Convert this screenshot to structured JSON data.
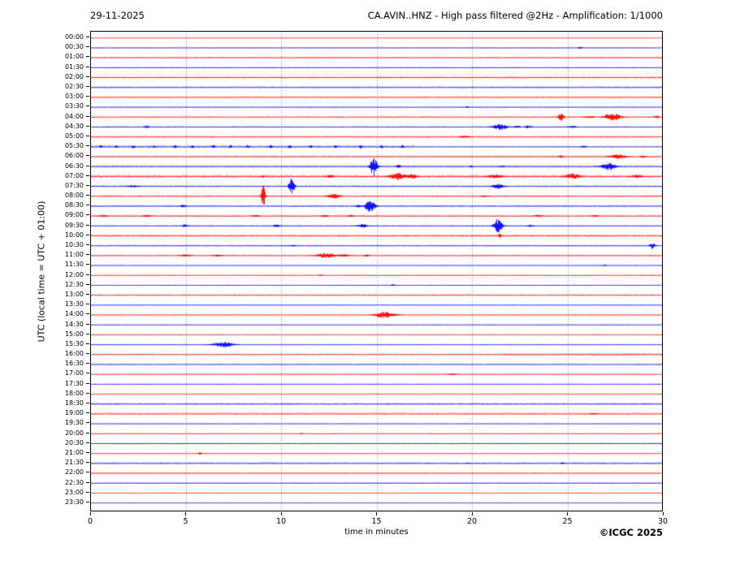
{
  "header": {
    "date": "29-11-2025",
    "title": "CA.AVIN..HNZ - High pass filtered @2Hz - Amplification: 1/1000"
  },
  "axes": {
    "ylabel": "UTC (local time = UTC + 01:00)",
    "xlabel": "time in minutes",
    "xticks": [
      0,
      5,
      10,
      15,
      20,
      25,
      30
    ],
    "xmin": 0,
    "xmax": 30,
    "grid_minutes": [
      5,
      10,
      15,
      20,
      25
    ]
  },
  "footer": {
    "copyright": "©ICGC 2025"
  },
  "colors": {
    "red": "#ff0000",
    "blue": "#0000ff",
    "grid": "#8a8a8a",
    "frame": "#000000"
  },
  "chart_data": {
    "type": "line",
    "subtype": "helicorder-dayplot",
    "station": "CA.AVIN..HNZ",
    "date": "29-11-2025",
    "minutes_per_row": 30,
    "event_format": "[center_minute, amplitude_px, width_minutes]",
    "noise_segment_format": "[start_minute, end_minute, noise_px]",
    "rows": [
      {
        "label": "00:00",
        "color": "red",
        "noise": 0.3,
        "events": []
      },
      {
        "label": "00:30",
        "color": "blue",
        "noise": 0.5,
        "events": [
          [
            25.6,
            1.5,
            0.1
          ]
        ]
      },
      {
        "label": "01:00",
        "color": "red",
        "noise": 0.7,
        "events": []
      },
      {
        "label": "01:30",
        "color": "blue",
        "noise": 0.55,
        "events": []
      },
      {
        "label": "02:00",
        "color": "red",
        "noise": 0.9,
        "events": []
      },
      {
        "label": "02:30",
        "color": "blue",
        "noise": 0.8,
        "events": []
      },
      {
        "label": "03:00",
        "color": "red",
        "noise": 0.8,
        "events": []
      },
      {
        "label": "03:30",
        "color": "blue",
        "noise": 0.6,
        "events": [
          [
            19.7,
            1.0,
            0.1
          ]
        ]
      },
      {
        "label": "04:00",
        "color": "red",
        "noise": 0.7,
        "events": [
          [
            24.6,
            5,
            0.15
          ],
          [
            26.1,
            1.5,
            0.3
          ],
          [
            27.3,
            5,
            0.45
          ],
          [
            29.6,
            2,
            0.12
          ]
        ]
      },
      {
        "label": "04:30",
        "color": "blue",
        "noise": 0.7,
        "events": [
          [
            2.9,
            2,
            0.15
          ],
          [
            21.4,
            4,
            0.4
          ],
          [
            22.3,
            1.5,
            0.2
          ],
          [
            22.9,
            2,
            0.2
          ],
          [
            25.2,
            1.5,
            0.25
          ]
        ]
      },
      {
        "label": "05:00",
        "color": "red",
        "noise": 0.9,
        "events": [
          [
            19.6,
            1.5,
            0.3
          ]
        ]
      },
      {
        "label": "05:30",
        "color": "blue",
        "noise": 1.0,
        "nseg": [
          [
            0,
            17,
            1.1
          ],
          [
            17,
            30,
            0.6
          ]
        ],
        "events": [
          [
            0.5,
            2.5,
            0.08
          ],
          [
            1.3,
            2,
            0.08
          ],
          [
            2.2,
            2.5,
            0.08
          ],
          [
            3.3,
            2,
            0.08
          ],
          [
            4.4,
            2.5,
            0.08
          ],
          [
            5.3,
            2,
            0.08
          ],
          [
            6.4,
            2.5,
            0.08
          ],
          [
            7.3,
            2,
            0.08
          ],
          [
            8.2,
            2.5,
            0.08
          ],
          [
            9.4,
            2.2,
            0.08
          ],
          [
            10.4,
            2.5,
            0.08
          ],
          [
            11.5,
            2,
            0.08
          ],
          [
            12.8,
            2.2,
            0.08
          ],
          [
            14.1,
            2.5,
            0.08
          ],
          [
            15.2,
            2.2,
            0.08
          ],
          [
            16.3,
            2.5,
            0.08
          ],
          [
            25.8,
            1.2,
            0.15
          ]
        ]
      },
      {
        "label": "06:00",
        "color": "red",
        "noise": 0.9,
        "events": [
          [
            24.6,
            2,
            0.12
          ],
          [
            27.6,
            3,
            0.45
          ],
          [
            28.9,
            1.5,
            0.15
          ]
        ]
      },
      {
        "label": "06:30",
        "color": "blue",
        "noise": 0.9,
        "events": [
          [
            14.8,
            13,
            0.18
          ],
          [
            16.1,
            2.5,
            0.12
          ],
          [
            19.9,
            1.5,
            0.1
          ],
          [
            21.5,
            1.5,
            0.15
          ],
          [
            27.1,
            4.5,
            0.4
          ]
        ]
      },
      {
        "label": "07:00",
        "color": "red",
        "noise": 1.4,
        "events": [
          [
            9.0,
            2,
            0.1
          ],
          [
            12.5,
            2,
            0.2
          ],
          [
            16.1,
            4.5,
            0.5
          ],
          [
            16.8,
            3,
            0.3
          ],
          [
            21.2,
            2.5,
            0.4
          ],
          [
            25.2,
            3.5,
            0.4
          ],
          [
            28.6,
            2,
            0.3
          ]
        ]
      },
      {
        "label": "07:30",
        "color": "blue",
        "noise": 0.8,
        "events": [
          [
            2.2,
            1.5,
            0.3
          ],
          [
            10.5,
            11,
            0.15
          ],
          [
            21.3,
            3.5,
            0.3
          ]
        ]
      },
      {
        "label": "08:00",
        "color": "red",
        "noise": 0.9,
        "events": [
          [
            9.0,
            16,
            0.1
          ],
          [
            12.7,
            3,
            0.35
          ],
          [
            20.6,
            1.5,
            0.2
          ]
        ]
      },
      {
        "label": "08:30",
        "color": "blue",
        "noise": 0.8,
        "events": [
          [
            4.8,
            1.8,
            0.15
          ],
          [
            14.0,
            2,
            0.15
          ],
          [
            14.6,
            9,
            0.25
          ]
        ]
      },
      {
        "label": "09:00",
        "color": "red",
        "noise": 0.9,
        "events": [
          [
            0.6,
            1.5,
            0.2
          ],
          [
            2.9,
            1.5,
            0.2
          ],
          [
            8.6,
            1.5,
            0.2
          ],
          [
            12.2,
            1.5,
            0.2
          ],
          [
            13.6,
            1.3,
            0.15
          ],
          [
            23.4,
            1.5,
            0.2
          ],
          [
            26.4,
            1.3,
            0.2
          ]
        ]
      },
      {
        "label": "09:30",
        "color": "blue",
        "noise": 0.7,
        "events": [
          [
            4.9,
            2,
            0.15
          ],
          [
            9.7,
            2.2,
            0.15
          ],
          [
            14.2,
            2.5,
            0.25
          ],
          [
            21.3,
            9,
            0.22
          ],
          [
            23.0,
            1.5,
            0.15
          ]
        ]
      },
      {
        "label": "10:00",
        "color": "red",
        "noise": 1.0,
        "events": [
          [
            21.4,
            3,
            0.08
          ]
        ]
      },
      {
        "label": "10:30",
        "color": "blue",
        "noise": 0.7,
        "events": [
          [
            10.6,
            1.5,
            0.12
          ],
          [
            29.4,
            4,
            0.15
          ]
        ]
      },
      {
        "label": "11:00",
        "color": "red",
        "noise": 0.8,
        "events": [
          [
            4.9,
            1.5,
            0.3
          ],
          [
            6.6,
            1.5,
            0.25
          ],
          [
            12.3,
            3.5,
            0.5
          ],
          [
            13.2,
            2,
            0.3
          ],
          [
            14.4,
            1.5,
            0.15
          ]
        ]
      },
      {
        "label": "11:30",
        "color": "blue",
        "noise": 0.5,
        "events": [
          [
            26.9,
            1,
            0.1
          ]
        ]
      },
      {
        "label": "12:00",
        "color": "red",
        "noise": 0.5,
        "events": [
          [
            12.0,
            1.2,
            0.1
          ]
        ]
      },
      {
        "label": "12:30",
        "color": "blue",
        "noise": 0.5,
        "events": [
          [
            15.8,
            1.3,
            0.1
          ]
        ]
      },
      {
        "label": "13:00",
        "color": "red",
        "noise": 0.8,
        "events": []
      },
      {
        "label": "13:30",
        "color": "blue",
        "noise": 0.5,
        "events": []
      },
      {
        "label": "14:00",
        "color": "red",
        "noise": 0.6,
        "events": [
          [
            15.4,
            5,
            0.5
          ]
        ]
      },
      {
        "label": "14:30",
        "color": "blue",
        "noise": 0.5,
        "events": []
      },
      {
        "label": "15:00",
        "color": "red",
        "noise": 0.5,
        "events": []
      },
      {
        "label": "15:30",
        "color": "blue",
        "noise": 0.55,
        "events": [
          [
            6.9,
            3.5,
            0.55
          ]
        ]
      },
      {
        "label": "16:00",
        "color": "red",
        "noise": 0.8,
        "nseg": [
          [
            0,
            21.5,
            0.7
          ],
          [
            21.5,
            30,
            1.1
          ]
        ],
        "events": []
      },
      {
        "label": "16:30",
        "color": "blue",
        "noise": 0.6,
        "events": []
      },
      {
        "label": "17:00",
        "color": "red",
        "noise": 0.45,
        "events": [
          [
            18.9,
            1,
            0.3
          ]
        ]
      },
      {
        "label": "17:30",
        "color": "blue",
        "noise": 0.5,
        "events": []
      },
      {
        "label": "18:00",
        "color": "red",
        "noise": 0.5,
        "events": []
      },
      {
        "label": "18:30",
        "color": "blue",
        "noise": 0.9,
        "events": []
      },
      {
        "label": "19:00",
        "color": "red",
        "noise": 0.85,
        "events": [
          [
            26.3,
            1.2,
            0.2
          ]
        ]
      },
      {
        "label": "19:30",
        "color": "blue",
        "noise": 0.5,
        "events": []
      },
      {
        "label": "20:00",
        "color": "red",
        "noise": 0.45,
        "events": [
          [
            11.0,
            0.8,
            0.1
          ]
        ]
      },
      {
        "label": "20:30",
        "color": "blue",
        "noise": 0.6,
        "events": []
      },
      {
        "label": "21:00",
        "color": "red",
        "noise": 0.5,
        "events": [
          [
            5.7,
            2,
            0.08
          ]
        ]
      },
      {
        "label": "21:30",
        "color": "blue",
        "noise": 0.9,
        "events": [
          [
            19.7,
            1,
            0.1
          ],
          [
            24.7,
            1.3,
            0.1
          ]
        ]
      },
      {
        "label": "22:00",
        "color": "red",
        "noise": 0.7,
        "events": []
      },
      {
        "label": "22:30",
        "color": "blue",
        "noise": 0.6,
        "events": []
      },
      {
        "label": "23:00",
        "color": "red",
        "noise": 0.4,
        "events": []
      },
      {
        "label": "23:30",
        "color": "blue",
        "noise": 0.4,
        "events": []
      }
    ]
  }
}
